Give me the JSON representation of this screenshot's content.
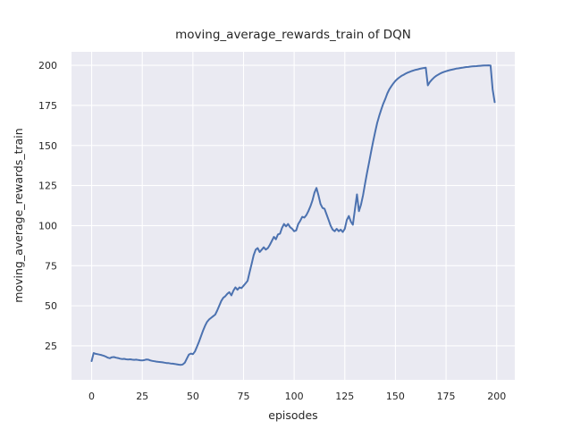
{
  "chart_data": {
    "type": "line",
    "title": "moving_average_rewards_train of DQN",
    "xlabel": "episodes",
    "ylabel": "moving_average_rewards_train",
    "series_name": "moving average rewards (train) of DQN",
    "x": "episode index 0-199; values[i] corresponds to episode i",
    "values": [
      15.5,
      20.5,
      20.0,
      19.8,
      19.5,
      19.2,
      18.8,
      18.3,
      17.6,
      17.3,
      17.9,
      18.0,
      17.6,
      17.4,
      17.0,
      16.8,
      16.9,
      16.6,
      16.5,
      16.6,
      16.4,
      16.3,
      16.4,
      16.2,
      16.0,
      15.9,
      16.1,
      16.5,
      16.4,
      15.9,
      15.6,
      15.4,
      15.2,
      15.0,
      14.9,
      14.7,
      14.5,
      14.3,
      14.2,
      14.0,
      13.9,
      13.7,
      13.5,
      13.3,
      13.1,
      13.4,
      14.5,
      17.0,
      19.5,
      20.2,
      19.8,
      21.5,
      24.5,
      27.5,
      31.0,
      34.5,
      37.5,
      40.0,
      41.5,
      42.5,
      43.5,
      44.5,
      47.0,
      50.0,
      53.0,
      55.0,
      56.0,
      57.5,
      58.5,
      56.5,
      59.5,
      61.5,
      60.0,
      61.5,
      61.0,
      62.5,
      64.0,
      65.5,
      71.0,
      76.0,
      81.5,
      85.0,
      86.0,
      83.5,
      85.0,
      86.5,
      85.0,
      86.0,
      88.0,
      90.5,
      93.0,
      91.5,
      94.5,
      95.0,
      98.5,
      101.0,
      99.5,
      101.0,
      99.0,
      98.0,
      96.5,
      97.0,
      101.0,
      103.0,
      105.5,
      105.0,
      106.5,
      109.0,
      112.0,
      115.5,
      120.5,
      123.5,
      119.0,
      113.5,
      111.0,
      110.5,
      107.0,
      103.5,
      100.0,
      97.5,
      96.5,
      98.0,
      96.5,
      97.5,
      96.0,
      98.0,
      103.5,
      106.0,
      102.5,
      100.5,
      110.0,
      119.5,
      109.0,
      113.0,
      119.0,
      126.0,
      133.0,
      139.5,
      146.0,
      152.5,
      158.5,
      164.0,
      168.5,
      172.5,
      176.0,
      179.0,
      182.5,
      185.0,
      187.0,
      188.8,
      190.3,
      191.5,
      192.5,
      193.4,
      194.1,
      194.8,
      195.4,
      195.9,
      196.4,
      196.8,
      197.2,
      197.5,
      197.8,
      198.1,
      198.3,
      198.5,
      187.5,
      189.5,
      191.0,
      192.3,
      193.3,
      194.1,
      194.8,
      195.4,
      195.9,
      196.3,
      196.7,
      197.0,
      197.3,
      197.6,
      197.9,
      198.1,
      198.3,
      198.5,
      198.7,
      198.9,
      199.0,
      199.2,
      199.3,
      199.4,
      199.5,
      199.6,
      199.7,
      199.8,
      199.9,
      199.9,
      200.0,
      199.8,
      185.0,
      177.0
    ],
    "xticks": [
      0,
      25,
      50,
      75,
      100,
      125,
      150,
      175,
      200
    ],
    "yticks": [
      25,
      50,
      75,
      100,
      125,
      150,
      175,
      200
    ],
    "xlim": [
      -9.95,
      208.95
    ],
    "ylim": [
      3.8,
      208.4
    ],
    "grid": true,
    "legend": "none",
    "style": "seaborn-darkgrid",
    "colors": {
      "line": "#4c72b0",
      "plot_background": "#eaeaf2",
      "figure_background": "#ffffff",
      "grid": "#ffffff",
      "text": "#262626"
    }
  }
}
